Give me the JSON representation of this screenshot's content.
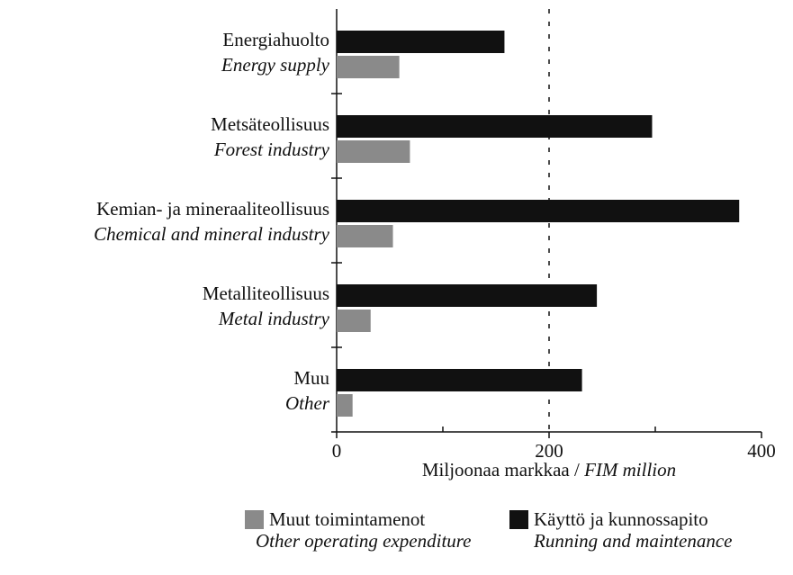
{
  "chart_data": {
    "type": "hbar",
    "categories": [
      "Energiahuolto",
      "Metsäteollisuus",
      "Kemian- ja mineraaliteollisuus",
      "Metalliteollisuus",
      "Muu"
    ],
    "categories_en": [
      "Energy supply",
      "Forest industry",
      "Chemical and mineral industry",
      "Metal industry",
      "Other"
    ],
    "series": [
      {
        "name": "Käyttö ja kunnossapito",
        "name_en": "Running and maintenance",
        "color": "#111111",
        "values": [
          158,
          297,
          379,
          245,
          231
        ]
      },
      {
        "name": "Muut toimintamenot",
        "name_en": "Other operating expenditure",
        "color": "#8a8a8a",
        "values": [
          59,
          69,
          53,
          32,
          15
        ]
      }
    ],
    "xlim": [
      0,
      400
    ],
    "xticks": [
      0,
      200,
      400
    ],
    "xminorticks": [
      100,
      300
    ],
    "vline": 200,
    "xlabel": "Miljoonaa markkaa / ",
    "xlabel_en": "FIM million"
  }
}
